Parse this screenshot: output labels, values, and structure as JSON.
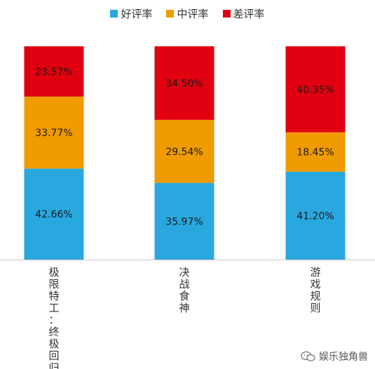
{
  "legend": [
    {
      "name": "好评率",
      "color": "#29A8E0"
    },
    {
      "name": "中评率",
      "color": "#F09B00"
    },
    {
      "name": "差评率",
      "color": "#E0000F"
    }
  ],
  "watermark": {
    "text": "娱乐独角兽",
    "icon": "wechat-icon"
  },
  "chart_data": {
    "type": "bar",
    "stacked": true,
    "categories": [
      "极限特工：终极回归",
      "决战食神",
      "游戏规则"
    ],
    "series": [
      {
        "name": "好评率",
        "color": "#29A8E0",
        "values": [
          42.66,
          35.97,
          41.2
        ]
      },
      {
        "name": "中评率",
        "color": "#F09B00",
        "values": [
          33.77,
          29.54,
          18.45
        ]
      },
      {
        "name": "差评率",
        "color": "#E0000F",
        "values": [
          23.57,
          34.5,
          40.35
        ]
      }
    ],
    "value_format": "%",
    "ylim": [
      0,
      100
    ],
    "grid": false,
    "legend_position": "top"
  }
}
